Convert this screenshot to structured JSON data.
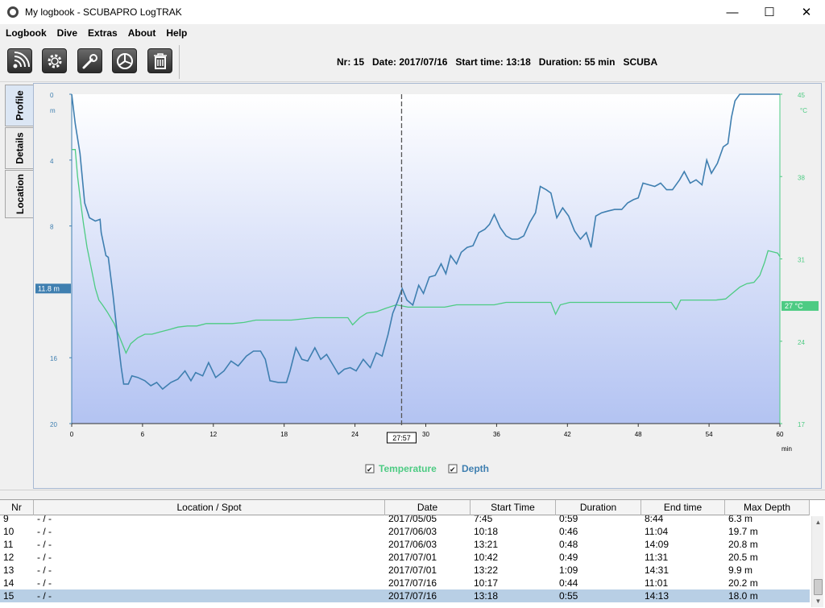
{
  "window": {
    "title": "My logbook - SCUBAPRO LogTRAK",
    "minimize": "—",
    "maximize": "☐",
    "close": "✕"
  },
  "menu": [
    "Logbook",
    "Dive",
    "Extras",
    "About",
    "Help"
  ],
  "toolbar": {
    "buttons": [
      "wireless-icon",
      "gear-icon",
      "wrench-icon",
      "pie-chart-icon",
      "trash-icon"
    ],
    "dive_info": "Nr: 15   Date: 2017/07/16   Start time: 13:18   Duration: 55 min   SCUBA"
  },
  "side_tabs": [
    "Profile",
    "Details",
    "Location"
  ],
  "chart_data": {
    "type": "line",
    "x": {
      "ticks": [
        0,
        6,
        12,
        18,
        24,
        30,
        36,
        42,
        48,
        54,
        60
      ],
      "unit": "min",
      "range": [
        0,
        60
      ]
    },
    "y_left": {
      "ticks": [
        0,
        4,
        8,
        16,
        20
      ],
      "unit": "m",
      "range": [
        0,
        20
      ],
      "inverted": true
    },
    "y_right": {
      "ticks": [
        45,
        38,
        31,
        24,
        17
      ],
      "unit": "°C",
      "range": [
        17,
        45
      ]
    },
    "cursor": {
      "time": 27.95,
      "time_label": "27:57",
      "depth_label": "11.8 m",
      "temp_label": "27 °C"
    },
    "legend": [
      "Temperature",
      "Depth"
    ],
    "colors": {
      "temperature": "#4dcb83",
      "depth": "#3f7fb0",
      "cursor_depth": "#3f7fb0",
      "cursor_temp": "#4dcb83"
    },
    "series": [
      {
        "name": "Depth",
        "points": [
          [
            0,
            0
          ],
          [
            0.3,
            1.8
          ],
          [
            0.7,
            3.6
          ],
          [
            1.1,
            6.6
          ],
          [
            1.5,
            7.5
          ],
          [
            2,
            7.7
          ],
          [
            2.4,
            7.6
          ],
          [
            2.5,
            8.4
          ],
          [
            2.9,
            9.8
          ],
          [
            3.1,
            9.9
          ],
          [
            3.5,
            12.2
          ],
          [
            3.9,
            14.8
          ],
          [
            4.2,
            16.6
          ],
          [
            4.4,
            17.6
          ],
          [
            4.8,
            17.6
          ],
          [
            5.1,
            17.1
          ],
          [
            5.6,
            17.2
          ],
          [
            6.2,
            17.4
          ],
          [
            6.7,
            17.7
          ],
          [
            7.2,
            17.5
          ],
          [
            7.7,
            17.9
          ],
          [
            8.4,
            17.5
          ],
          [
            9,
            17.3
          ],
          [
            9.6,
            16.8
          ],
          [
            10.1,
            17.4
          ],
          [
            10.5,
            16.9
          ],
          [
            11.1,
            17.1
          ],
          [
            11.6,
            16.3
          ],
          [
            12.2,
            17.2
          ],
          [
            12.9,
            16.8
          ],
          [
            13.5,
            16.2
          ],
          [
            14.1,
            16.5
          ],
          [
            14.8,
            15.9
          ],
          [
            15.4,
            15.6
          ],
          [
            16,
            15.6
          ],
          [
            16.4,
            16.1
          ],
          [
            16.8,
            17.4
          ],
          [
            17.5,
            17.5
          ],
          [
            18.2,
            17.5
          ],
          [
            18.5,
            16.8
          ],
          [
            19,
            15.4
          ],
          [
            19.5,
            16.1
          ],
          [
            20,
            16.2
          ],
          [
            20.6,
            15.4
          ],
          [
            21.1,
            16.1
          ],
          [
            21.6,
            15.8
          ],
          [
            22.1,
            16.4
          ],
          [
            22.6,
            17.0
          ],
          [
            23.1,
            16.7
          ],
          [
            23.6,
            16.6
          ],
          [
            24.1,
            16.8
          ],
          [
            24.7,
            16.1
          ],
          [
            25.3,
            16.6
          ],
          [
            25.8,
            15.7
          ],
          [
            26.3,
            15.9
          ],
          [
            26.8,
            14.6
          ],
          [
            27.2,
            13.3
          ],
          [
            27.6,
            12.6
          ],
          [
            28,
            11.8
          ],
          [
            28.4,
            12.5
          ],
          [
            28.9,
            12.8
          ],
          [
            29.4,
            11.6
          ],
          [
            29.8,
            12.1
          ],
          [
            30.3,
            11.1
          ],
          [
            30.8,
            11.0
          ],
          [
            31.3,
            10.3
          ],
          [
            31.7,
            10.9
          ],
          [
            32.1,
            9.8
          ],
          [
            32.6,
            10.3
          ],
          [
            33.0,
            9.6
          ],
          [
            33.5,
            9.3
          ],
          [
            34,
            9.2
          ],
          [
            34.5,
            8.4
          ],
          [
            35,
            8.2
          ],
          [
            35.4,
            7.9
          ],
          [
            35.8,
            7.3
          ],
          [
            36.3,
            8.1
          ],
          [
            36.8,
            8.6
          ],
          [
            37.3,
            8.8
          ],
          [
            37.8,
            8.8
          ],
          [
            38.3,
            8.6
          ],
          [
            38.8,
            7.8
          ],
          [
            39.3,
            7.2
          ],
          [
            39.7,
            5.6
          ],
          [
            40.2,
            5.8
          ],
          [
            40.6,
            6.0
          ],
          [
            41.1,
            7.5
          ],
          [
            41.6,
            6.9
          ],
          [
            42.1,
            7.4
          ],
          [
            42.6,
            8.3
          ],
          [
            43.1,
            8.8
          ],
          [
            43.6,
            8.4
          ],
          [
            44,
            9.3
          ],
          [
            44.4,
            7.4
          ],
          [
            44.9,
            7.2
          ],
          [
            45.4,
            7.1
          ],
          [
            46,
            7.0
          ],
          [
            46.6,
            7.0
          ],
          [
            47.1,
            6.6
          ],
          [
            47.6,
            6.4
          ],
          [
            48,
            6.3
          ],
          [
            48.4,
            5.4
          ],
          [
            48.9,
            5.5
          ],
          [
            49.4,
            5.6
          ],
          [
            49.9,
            5.4
          ],
          [
            50.4,
            5.8
          ],
          [
            50.9,
            5.8
          ],
          [
            51.5,
            5.2
          ],
          [
            51.9,
            4.7
          ],
          [
            52.4,
            5.4
          ],
          [
            52.9,
            5.2
          ],
          [
            53.4,
            5.5
          ],
          [
            53.8,
            4.0
          ],
          [
            54.2,
            4.8
          ],
          [
            54.7,
            4.2
          ],
          [
            55.2,
            3.2
          ],
          [
            55.6,
            3.0
          ],
          [
            55.9,
            1.4
          ],
          [
            56.2,
            0.4
          ],
          [
            56.6,
            0.0
          ],
          [
            57.5,
            0.0
          ],
          [
            58.5,
            0.0
          ],
          [
            59.5,
            0.0
          ],
          [
            60.0,
            0.0
          ]
        ]
      },
      {
        "name": "Temperature",
        "points": [
          [
            0,
            40.3
          ],
          [
            0.3,
            40.3
          ],
          [
            0.5,
            38.0
          ],
          [
            0.8,
            35.5
          ],
          [
            1.0,
            34.0
          ],
          [
            1.3,
            32.0
          ],
          [
            1.7,
            30.0
          ],
          [
            2.0,
            28.5
          ],
          [
            2.3,
            27.5
          ],
          [
            2.6,
            27.1
          ],
          [
            3.0,
            26.5
          ],
          [
            3.6,
            25.5
          ],
          [
            4.2,
            24.0
          ],
          [
            4.6,
            23.0
          ],
          [
            5.0,
            23.8
          ],
          [
            5.6,
            24.3
          ],
          [
            6.2,
            24.6
          ],
          [
            6.8,
            24.6
          ],
          [
            7.5,
            24.8
          ],
          [
            8.3,
            25.0
          ],
          [
            9.0,
            25.2
          ],
          [
            9.8,
            25.3
          ],
          [
            10.6,
            25.3
          ],
          [
            11.4,
            25.5
          ],
          [
            12.5,
            25.5
          ],
          [
            13.6,
            25.5
          ],
          [
            14.6,
            25.6
          ],
          [
            15.6,
            25.8
          ],
          [
            16.6,
            25.8
          ],
          [
            17.6,
            25.8
          ],
          [
            18.6,
            25.8
          ],
          [
            19.6,
            25.9
          ],
          [
            20.6,
            26.0
          ],
          [
            21.6,
            26.0
          ],
          [
            22.6,
            26.0
          ],
          [
            23.4,
            26.0
          ],
          [
            23.8,
            25.4
          ],
          [
            24.4,
            26.0
          ],
          [
            25.0,
            26.4
          ],
          [
            25.8,
            26.5
          ],
          [
            26.6,
            26.8
          ],
          [
            27.5,
            27.1
          ],
          [
            28.5,
            26.9
          ],
          [
            29.5,
            26.9
          ],
          [
            30.5,
            26.9
          ],
          [
            31.6,
            26.9
          ],
          [
            32.6,
            27.1
          ],
          [
            33.8,
            27.1
          ],
          [
            34.8,
            27.1
          ],
          [
            35.8,
            27.1
          ],
          [
            36.8,
            27.3
          ],
          [
            37.8,
            27.3
          ],
          [
            38.8,
            27.3
          ],
          [
            39.8,
            27.3
          ],
          [
            40.6,
            27.3
          ],
          [
            41.0,
            26.3
          ],
          [
            41.4,
            27.1
          ],
          [
            42.2,
            27.3
          ],
          [
            43.2,
            27.3
          ],
          [
            44.2,
            27.3
          ],
          [
            45.2,
            27.3
          ],
          [
            46.2,
            27.3
          ],
          [
            47.2,
            27.3
          ],
          [
            48.2,
            27.3
          ],
          [
            49.2,
            27.3
          ],
          [
            50.2,
            27.3
          ],
          [
            50.8,
            27.3
          ],
          [
            51.2,
            26.7
          ],
          [
            51.6,
            27.5
          ],
          [
            52.6,
            27.5
          ],
          [
            53.6,
            27.5
          ],
          [
            54.6,
            27.5
          ],
          [
            55.4,
            27.6
          ],
          [
            56.0,
            28.1
          ],
          [
            56.6,
            28.6
          ],
          [
            57.2,
            28.9
          ],
          [
            57.8,
            29.0
          ],
          [
            58.3,
            29.6
          ],
          [
            58.7,
            30.7
          ],
          [
            59.0,
            31.7
          ],
          [
            59.4,
            31.6
          ],
          [
            59.8,
            31.5
          ],
          [
            60.0,
            31.2
          ]
        ]
      }
    ]
  },
  "table": {
    "columns": [
      "Nr",
      "Location / Spot",
      "Date",
      "Start Time",
      "Duration",
      "End time",
      "Max Depth"
    ],
    "rows": [
      [
        "9",
        "- / -",
        "2017/05/05",
        "7:45",
        "0:59",
        "8:44",
        "6.3 m"
      ],
      [
        "10",
        "- / -",
        "2017/06/03",
        "10:18",
        "0:46",
        "11:04",
        "19.7 m"
      ],
      [
        "11",
        "- / -",
        "2017/06/03",
        "13:21",
        "0:48",
        "14:09",
        "20.8 m"
      ],
      [
        "12",
        "- / -",
        "2017/07/01",
        "10:42",
        "0:49",
        "11:31",
        "20.5 m"
      ],
      [
        "13",
        "- / -",
        "2017/07/01",
        "13:22",
        "1:09",
        "14:31",
        "9.9 m"
      ],
      [
        "14",
        "- / -",
        "2017/07/16",
        "10:17",
        "0:44",
        "11:01",
        "20.2 m"
      ],
      [
        "15",
        "- / -",
        "2017/07/16",
        "13:18",
        "0:55",
        "14:13",
        "18.0 m"
      ]
    ],
    "selected_row": "15"
  }
}
